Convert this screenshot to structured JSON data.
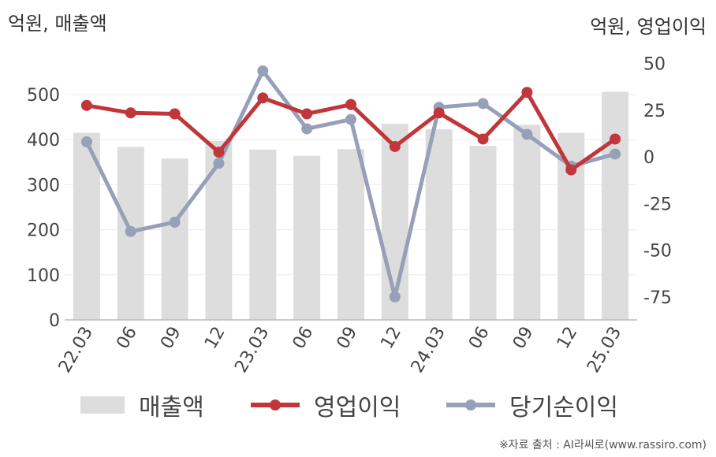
{
  "left_unit": "억원, 매출액",
  "right_unit": "억원, 영업이익",
  "source": "※자료 출처 : AI라씨로(www.rassiro.com)",
  "colors": {
    "revenue": "#dddddd",
    "operating": "#c0363a",
    "net": "#97a0b8"
  },
  "chart_data": {
    "type": "bar",
    "categories": [
      "22.03",
      "06",
      "09",
      "12",
      "23.03",
      "06",
      "09",
      "12",
      "24.03",
      "06",
      "09",
      "12",
      "25.03"
    ],
    "y_left": {
      "min": 0,
      "max": 500,
      "ticks": [
        0,
        100,
        200,
        300,
        400,
        500
      ]
    },
    "y_right": {
      "min": -75,
      "max": 50,
      "ticks": [
        50,
        25,
        0,
        -25,
        -50,
        -75
      ]
    },
    "grid": true,
    "legend_position": "bottom",
    "series": [
      {
        "name": "매출액",
        "type": "bar",
        "axis": "left",
        "values": [
          415,
          384,
          358,
          397,
          378,
          364,
          379,
          435,
          423,
          386,
          433,
          415,
          506
        ]
      },
      {
        "name": "영업이익",
        "type": "line",
        "axis": "right",
        "values": [
          27.5,
          23.5,
          23,
          2.5,
          31.5,
          23,
          28,
          5.5,
          23.5,
          9.5,
          34.5,
          -7,
          9.5
        ]
      },
      {
        "name": "당기순이익",
        "type": "line",
        "axis": "right",
        "values": [
          8,
          -40,
          -35,
          -3.5,
          46,
          15,
          20,
          -75,
          26.5,
          28.5,
          12,
          -5,
          1.5
        ]
      }
    ]
  }
}
